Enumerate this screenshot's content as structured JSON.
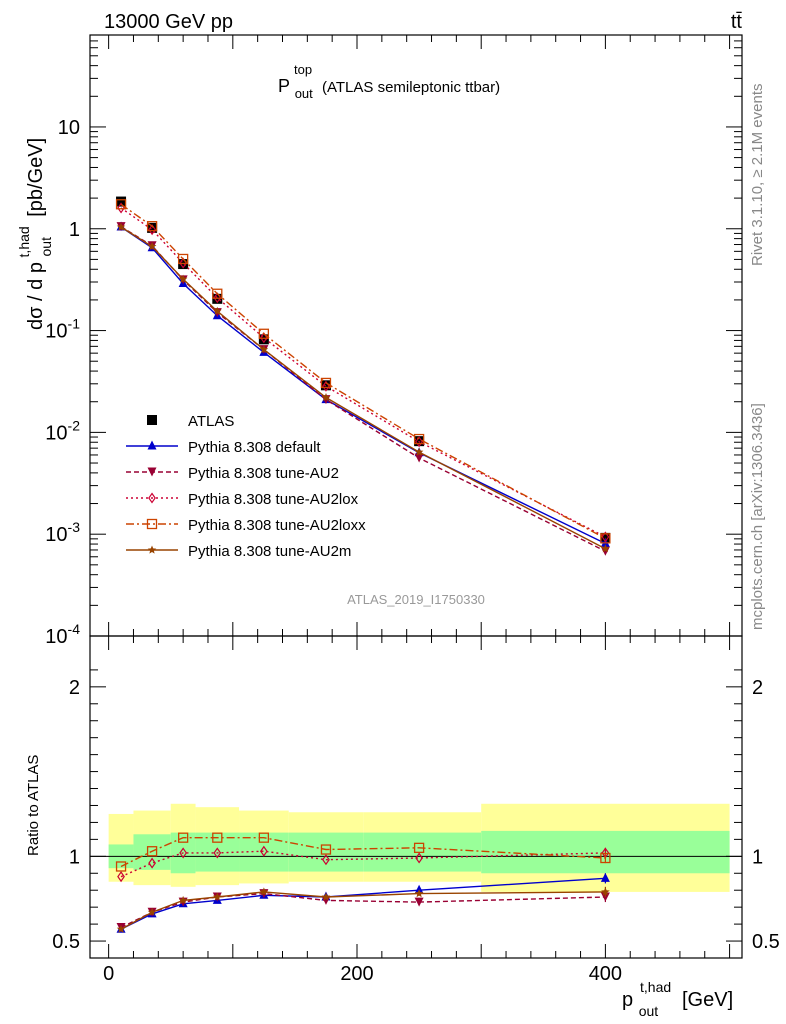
{
  "header": {
    "process": "13000 GeV pp",
    "channel": "tt̄",
    "analysis_id": "ATLAS_2019_I1750330",
    "rivet_note": "Rivet 3.1.10, ≥ 2.1M events",
    "source_note": "mcplots.cern.ch [arXiv:1306.3436]"
  },
  "chart_data": [
    {
      "type": "line",
      "panel": "main",
      "title": "P_out^top (ATLAS semileptonic ttbar)",
      "title_parts": {
        "main": "P",
        "sup": "top",
        "sub": "out",
        "rest": "(ATLAS semileptonic ttbar)"
      },
      "ylabel": "dσ / d p_out^t,had [pb/GeV]",
      "ylabel_parts": {
        "main": "dσ / d p",
        "sup": "t,had",
        "sub": "out",
        "rest": "[pb/GeV]"
      },
      "y_scale": "log",
      "ylim": [
        0.0001,
        80
      ],
      "xlim": [
        -15,
        510
      ],
      "y_tick_labels": [
        "10",
        "1",
        "10^-1",
        "10^-2",
        "10^-3",
        "10^-4"
      ],
      "x": [
        10,
        35,
        60,
        87.5,
        125,
        175,
        250,
        400
      ],
      "legend_position": "middle-left",
      "series": [
        {
          "name": "ATLAS",
          "color": "#000000",
          "marker": "square-filled",
          "values": [
            1.85,
            1.02,
            0.45,
            0.205,
            0.082,
            0.029,
            0.0082,
            0.00092
          ]
        },
        {
          "name": "Pythia 8.308 default",
          "color": "#0000cc",
          "marker": "triangle-up",
          "dash": "",
          "values": [
            1.04,
            0.65,
            0.29,
            0.14,
            0.061,
            0.021,
            0.0063,
            0.00081
          ]
        },
        {
          "name": "Pythia 8.308 tune-AU2",
          "color": "#990033",
          "marker": "triangle-down",
          "dash": "5,3",
          "values": [
            1.05,
            0.68,
            0.315,
            0.15,
            0.065,
            0.021,
            0.0056,
            0.00068
          ]
        },
        {
          "name": "Pythia 8.308 tune-AU2lox",
          "color": "#cc0033",
          "marker": "diamond-open",
          "dash": "2,3",
          "values": [
            1.6,
            0.98,
            0.46,
            0.21,
            0.085,
            0.0284,
            0.0081,
            0.00094
          ]
        },
        {
          "name": "Pythia 8.308 tune-AU2loxx",
          "color": "#cc4400",
          "marker": "square-open",
          "dash": "8,3,2,3",
          "values": [
            1.74,
            1.06,
            0.505,
            0.23,
            0.093,
            0.0306,
            0.0086,
            0.00091
          ]
        },
        {
          "name": "Pythia 8.308 tune-AU2m",
          "color": "#994400",
          "marker": "star",
          "dash": "",
          "values": [
            1.04,
            0.67,
            0.32,
            0.155,
            0.065,
            0.022,
            0.0064,
            0.00072
          ]
        }
      ]
    },
    {
      "type": "line",
      "panel": "ratio",
      "ylabel": "Ratio to ATLAS",
      "xlabel": "p_out^t,had [GeV]",
      "xlabel_parts": {
        "main": "p",
        "sup": "t,had",
        "sub": "out",
        "rest": "[GeV]"
      },
      "xlim": [
        -15,
        510
      ],
      "ylim": [
        0.4,
        2.3
      ],
      "x_ticks": [
        0,
        200,
        400
      ],
      "y_ticks": [
        0.5,
        1,
        2
      ],
      "bins": [
        0,
        20,
        50,
        70,
        105,
        145,
        205,
        300,
        500
      ],
      "band_inner": [
        [
          0.93,
          1.07
        ],
        [
          0.92,
          1.13
        ],
        [
          0.9,
          1.14
        ],
        [
          0.91,
          1.14
        ],
        [
          0.91,
          1.14
        ],
        [
          0.91,
          1.14
        ],
        [
          0.91,
          1.14
        ],
        [
          0.9,
          1.15
        ]
      ],
      "band_outer": [
        [
          0.85,
          1.25
        ],
        [
          0.83,
          1.27
        ],
        [
          0.82,
          1.31
        ],
        [
          0.83,
          1.29
        ],
        [
          0.84,
          1.27
        ],
        [
          0.85,
          1.26
        ],
        [
          0.85,
          1.26
        ],
        [
          0.79,
          1.31
        ]
      ],
      "x": [
        10,
        35,
        60,
        87.5,
        125,
        175,
        250,
        400
      ],
      "series": [
        {
          "name": "Pythia 8.308 default",
          "color": "#0000cc",
          "marker": "triangle-up",
          "dash": "",
          "values": [
            0.57,
            0.66,
            0.72,
            0.74,
            0.77,
            0.76,
            0.8,
            0.87
          ],
          "err_last": 0.03
        },
        {
          "name": "Pythia 8.308 tune-AU2",
          "color": "#990033",
          "marker": "triangle-down",
          "dash": "5,3",
          "values": [
            0.58,
            0.67,
            0.73,
            0.76,
            0.78,
            0.74,
            0.73,
            0.76
          ],
          "err_last": 0.03
        },
        {
          "name": "Pythia 8.308 tune-AU2lox",
          "color": "#cc0033",
          "marker": "diamond-open",
          "dash": "2,3",
          "values": [
            0.88,
            0.96,
            1.02,
            1.02,
            1.03,
            0.98,
            0.99,
            1.02
          ],
          "err_last": 0.03
        },
        {
          "name": "Pythia 8.308 tune-AU2loxx",
          "color": "#cc4400",
          "marker": "square-open",
          "dash": "8,3,2,3",
          "values": [
            0.94,
            1.03,
            1.11,
            1.11,
            1.11,
            1.04,
            1.05,
            0.99
          ],
          "err_last": 0.03
        },
        {
          "name": "Pythia 8.308 tune-AU2m",
          "color": "#994400",
          "marker": "star",
          "dash": "",
          "values": [
            0.57,
            0.67,
            0.74,
            0.76,
            0.79,
            0.76,
            0.78,
            0.79
          ],
          "err_last": 0.03
        }
      ]
    }
  ]
}
